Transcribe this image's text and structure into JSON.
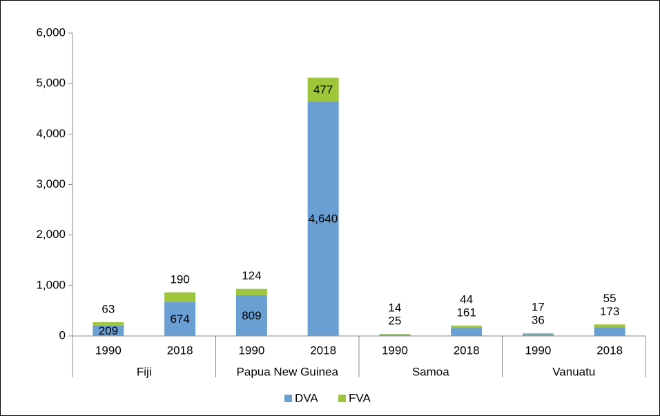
{
  "chart_data": {
    "type": "stacked_bar",
    "categories": [
      "1990",
      "2018",
      "1990",
      "2018",
      "1990",
      "2018",
      "1990",
      "2018"
    ],
    "groups": [
      "Fiji",
      "Papua New Guinea",
      "Samoa",
      "Vanuatu"
    ],
    "series": [
      {
        "name": "DVA",
        "color": "#6a9fd4",
        "values": [
          209,
          674,
          809,
          4640,
          25,
          161,
          36,
          173
        ],
        "value_labels": [
          "209",
          "674",
          "809",
          "4,640",
          "25",
          "161",
          "36",
          "173"
        ]
      },
      {
        "name": "FVA",
        "color": "#9dc63b",
        "values": [
          63,
          190,
          124,
          477,
          14,
          44,
          17,
          55
        ]
      }
    ],
    "ylim": [
      0,
      6000
    ],
    "yticks": [
      0,
      {
        "value": 1000,
        "label": "1,000"
      },
      {
        "value": 2000,
        "label": "2,000"
      },
      {
        "value": 3000,
        "label": "3,000"
      },
      {
        "value": 4000,
        "label": "4,000"
      },
      {
        "value": 5000,
        "label": "5,000"
      },
      {
        "value": 6000,
        "label": "6,000"
      }
    ],
    "legend": "bottom"
  }
}
